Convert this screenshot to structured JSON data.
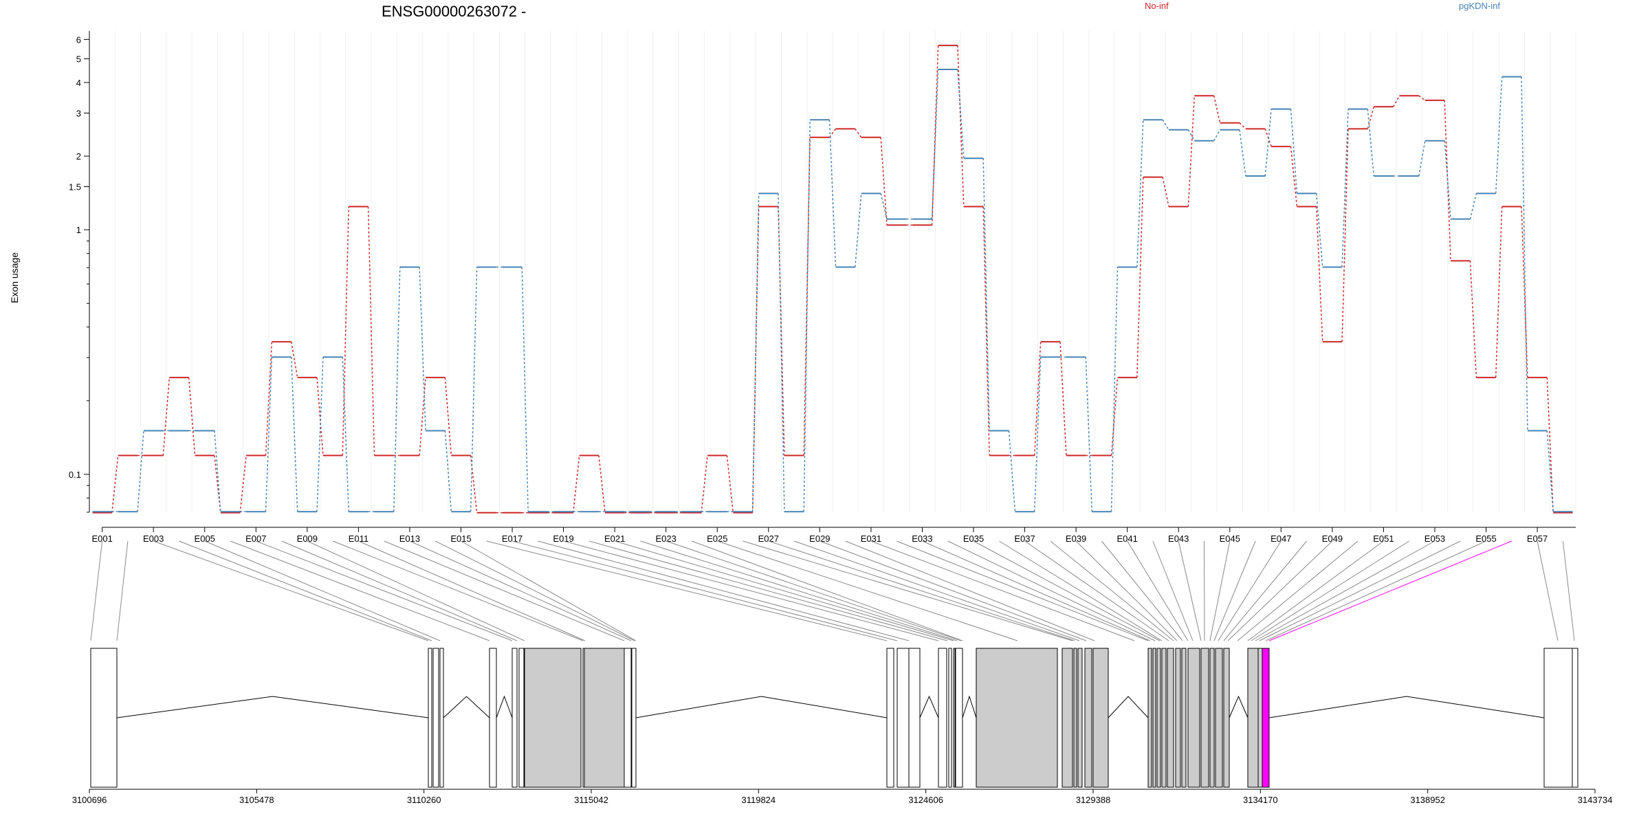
{
  "title": "ENSG00000263072 -",
  "ylabel": "Exon usage",
  "legend": [
    {
      "label": "No-inf",
      "color": "#cd2626"
    },
    {
      "label": "pgKDN-inf",
      "color": "#4682b4"
    }
  ],
  "colors": {
    "gene_box_fill": "#cccccc",
    "highlight": "#ff00ff",
    "link_line": "#888888"
  },
  "chart_data": {
    "type": "line",
    "scale": "log",
    "ylabel": "Exon usage",
    "ylim": [
      0.07,
      6.5
    ],
    "yticks": [
      0.1,
      1,
      1.5,
      2,
      3,
      4,
      5,
      6
    ],
    "ytick_labels": [
      "0.1",
      "1",
      "1.5",
      "2",
      "3",
      "4",
      "5",
      "6"
    ],
    "exon_labels": [
      "E001",
      "E003",
      "E005",
      "E007",
      "E009",
      "E011",
      "E013",
      "E015",
      "E017",
      "E019",
      "E021",
      "E023",
      "E025",
      "E027",
      "E029",
      "E031",
      "E033",
      "E035",
      "E037",
      "E039",
      "E041",
      "E043",
      "E045",
      "E047",
      "E049",
      "E051",
      "E053",
      "E055",
      "E057"
    ],
    "series": [
      {
        "name": "No-inf",
        "color": "#cd2626",
        "values": [
          0.07,
          0.12,
          0.12,
          0.25,
          0.12,
          0.07,
          0.12,
          0.35,
          0.25,
          0.12,
          1.25,
          0.12,
          0.12,
          0.25,
          0.12,
          0.07,
          0.07,
          0.07,
          0.07,
          0.12,
          0.07,
          0.07,
          0.07,
          0.07,
          0.12,
          0.07,
          1.25,
          0.12,
          2.4,
          2.6,
          2.4,
          1.05,
          1.05,
          5.7,
          1.25,
          0.12,
          0.12,
          0.35,
          0.12,
          0.12,
          0.25,
          1.65,
          1.25,
          3.55,
          2.75,
          2.6,
          2.2,
          1.25,
          0.35,
          2.6,
          3.2,
          3.55,
          3.4,
          0.75,
          0.25,
          1.25,
          0.25,
          0.07
        ]
      },
      {
        "name": "pgKDN-inf",
        "color": "#4682b4",
        "values": [
          0.07,
          0.07,
          0.15,
          0.15,
          0.15,
          0.07,
          0.07,
          0.3,
          0.07,
          0.3,
          0.07,
          0.07,
          0.7,
          0.15,
          0.07,
          0.7,
          0.7,
          0.07,
          0.07,
          0.07,
          0.07,
          0.07,
          0.07,
          0.07,
          0.07,
          0.07,
          1.4,
          0.07,
          2.8,
          0.7,
          1.4,
          1.1,
          1.1,
          4.5,
          1.95,
          0.15,
          0.07,
          0.3,
          0.3,
          0.07,
          0.7,
          2.8,
          2.55,
          2.3,
          2.55,
          1.65,
          3.1,
          1.4,
          0.7,
          3.1,
          1.65,
          1.65,
          2.3,
          1.1,
          1.4,
          4.2,
          0.15,
          0.07
        ]
      }
    ],
    "genome_ticks": [
      "3100696",
      "3105478",
      "3110260",
      "3115042",
      "3119824",
      "3124606",
      "3129388",
      "3134170",
      "3138952",
      "3143734"
    ],
    "genome_range": [
      3100696,
      3143734
    ]
  }
}
